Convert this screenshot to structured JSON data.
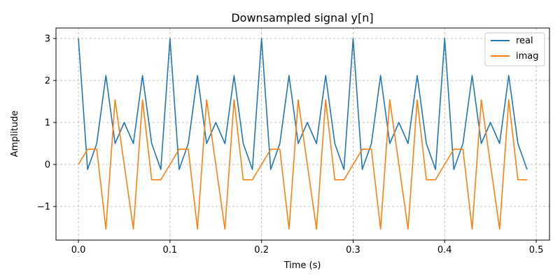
{
  "chart_data": {
    "type": "line",
    "title": "Downsampled signal y[n]",
    "xlabel": "Time (s)",
    "ylabel": "Amplitude",
    "xlim": [
      -0.0245,
      0.5145
    ],
    "ylim": [
      -1.8,
      3.25
    ],
    "xticks": [
      0,
      0.1,
      0.2,
      0.3,
      0.4,
      0.5
    ],
    "xtick_labels": [
      "0.0",
      "0.1",
      "0.2",
      "0.3",
      "0.4",
      "0.5"
    ],
    "yticks": [
      -1,
      0,
      1,
      2,
      3
    ],
    "ytick_labels": [
      "−1",
      "0",
      "1",
      "2",
      "3"
    ],
    "grid": true,
    "legend_position": "top-right",
    "x": [
      0.0,
      0.01,
      0.02,
      0.03,
      0.04,
      0.05,
      0.06,
      0.07,
      0.08,
      0.09,
      0.1,
      0.11,
      0.12,
      0.13,
      0.14,
      0.15,
      0.16,
      0.17,
      0.18,
      0.19,
      0.2,
      0.21,
      0.22,
      0.23,
      0.24,
      0.25,
      0.26,
      0.27,
      0.28,
      0.29,
      0.3,
      0.31,
      0.32,
      0.33,
      0.34,
      0.35,
      0.36,
      0.37,
      0.38,
      0.39,
      0.4,
      0.41,
      0.42,
      0.43,
      0.44,
      0.45,
      0.46,
      0.47,
      0.48,
      0.49
    ],
    "series": [
      {
        "name": "real",
        "color": "#1f77b4",
        "values": [
          3.0,
          -0.118,
          0.5,
          2.118,
          0.5,
          1.0,
          0.5,
          2.118,
          0.5,
          -0.118,
          3.0,
          -0.118,
          0.5,
          2.118,
          0.5,
          1.0,
          0.5,
          2.118,
          0.5,
          -0.118,
          3.0,
          -0.118,
          0.5,
          2.118,
          0.5,
          1.0,
          0.5,
          2.118,
          0.5,
          -0.118,
          3.0,
          -0.118,
          0.5,
          2.118,
          0.5,
          1.0,
          0.5,
          2.118,
          0.5,
          -0.118,
          3.0,
          -0.118,
          0.5,
          2.118,
          0.5,
          1.0,
          0.5,
          2.118,
          0.5,
          -0.118
        ]
      },
      {
        "name": "imag",
        "color": "#ff7f0e",
        "values": [
          0.0,
          0.363,
          0.363,
          -1.539,
          1.539,
          0.0,
          -1.539,
          1.539,
          -0.363,
          -0.363,
          0.0,
          0.363,
          0.363,
          -1.539,
          1.539,
          0.0,
          -1.539,
          1.539,
          -0.363,
          -0.363,
          0.0,
          0.363,
          0.363,
          -1.539,
          1.539,
          0.0,
          -1.539,
          1.539,
          -0.363,
          -0.363,
          0.0,
          0.363,
          0.363,
          -1.539,
          1.539,
          0.0,
          -1.539,
          1.539,
          -0.363,
          -0.363,
          0.0,
          0.363,
          0.363,
          -1.539,
          1.539,
          0.0,
          -1.539,
          1.539,
          -0.363,
          -0.363
        ]
      }
    ]
  }
}
